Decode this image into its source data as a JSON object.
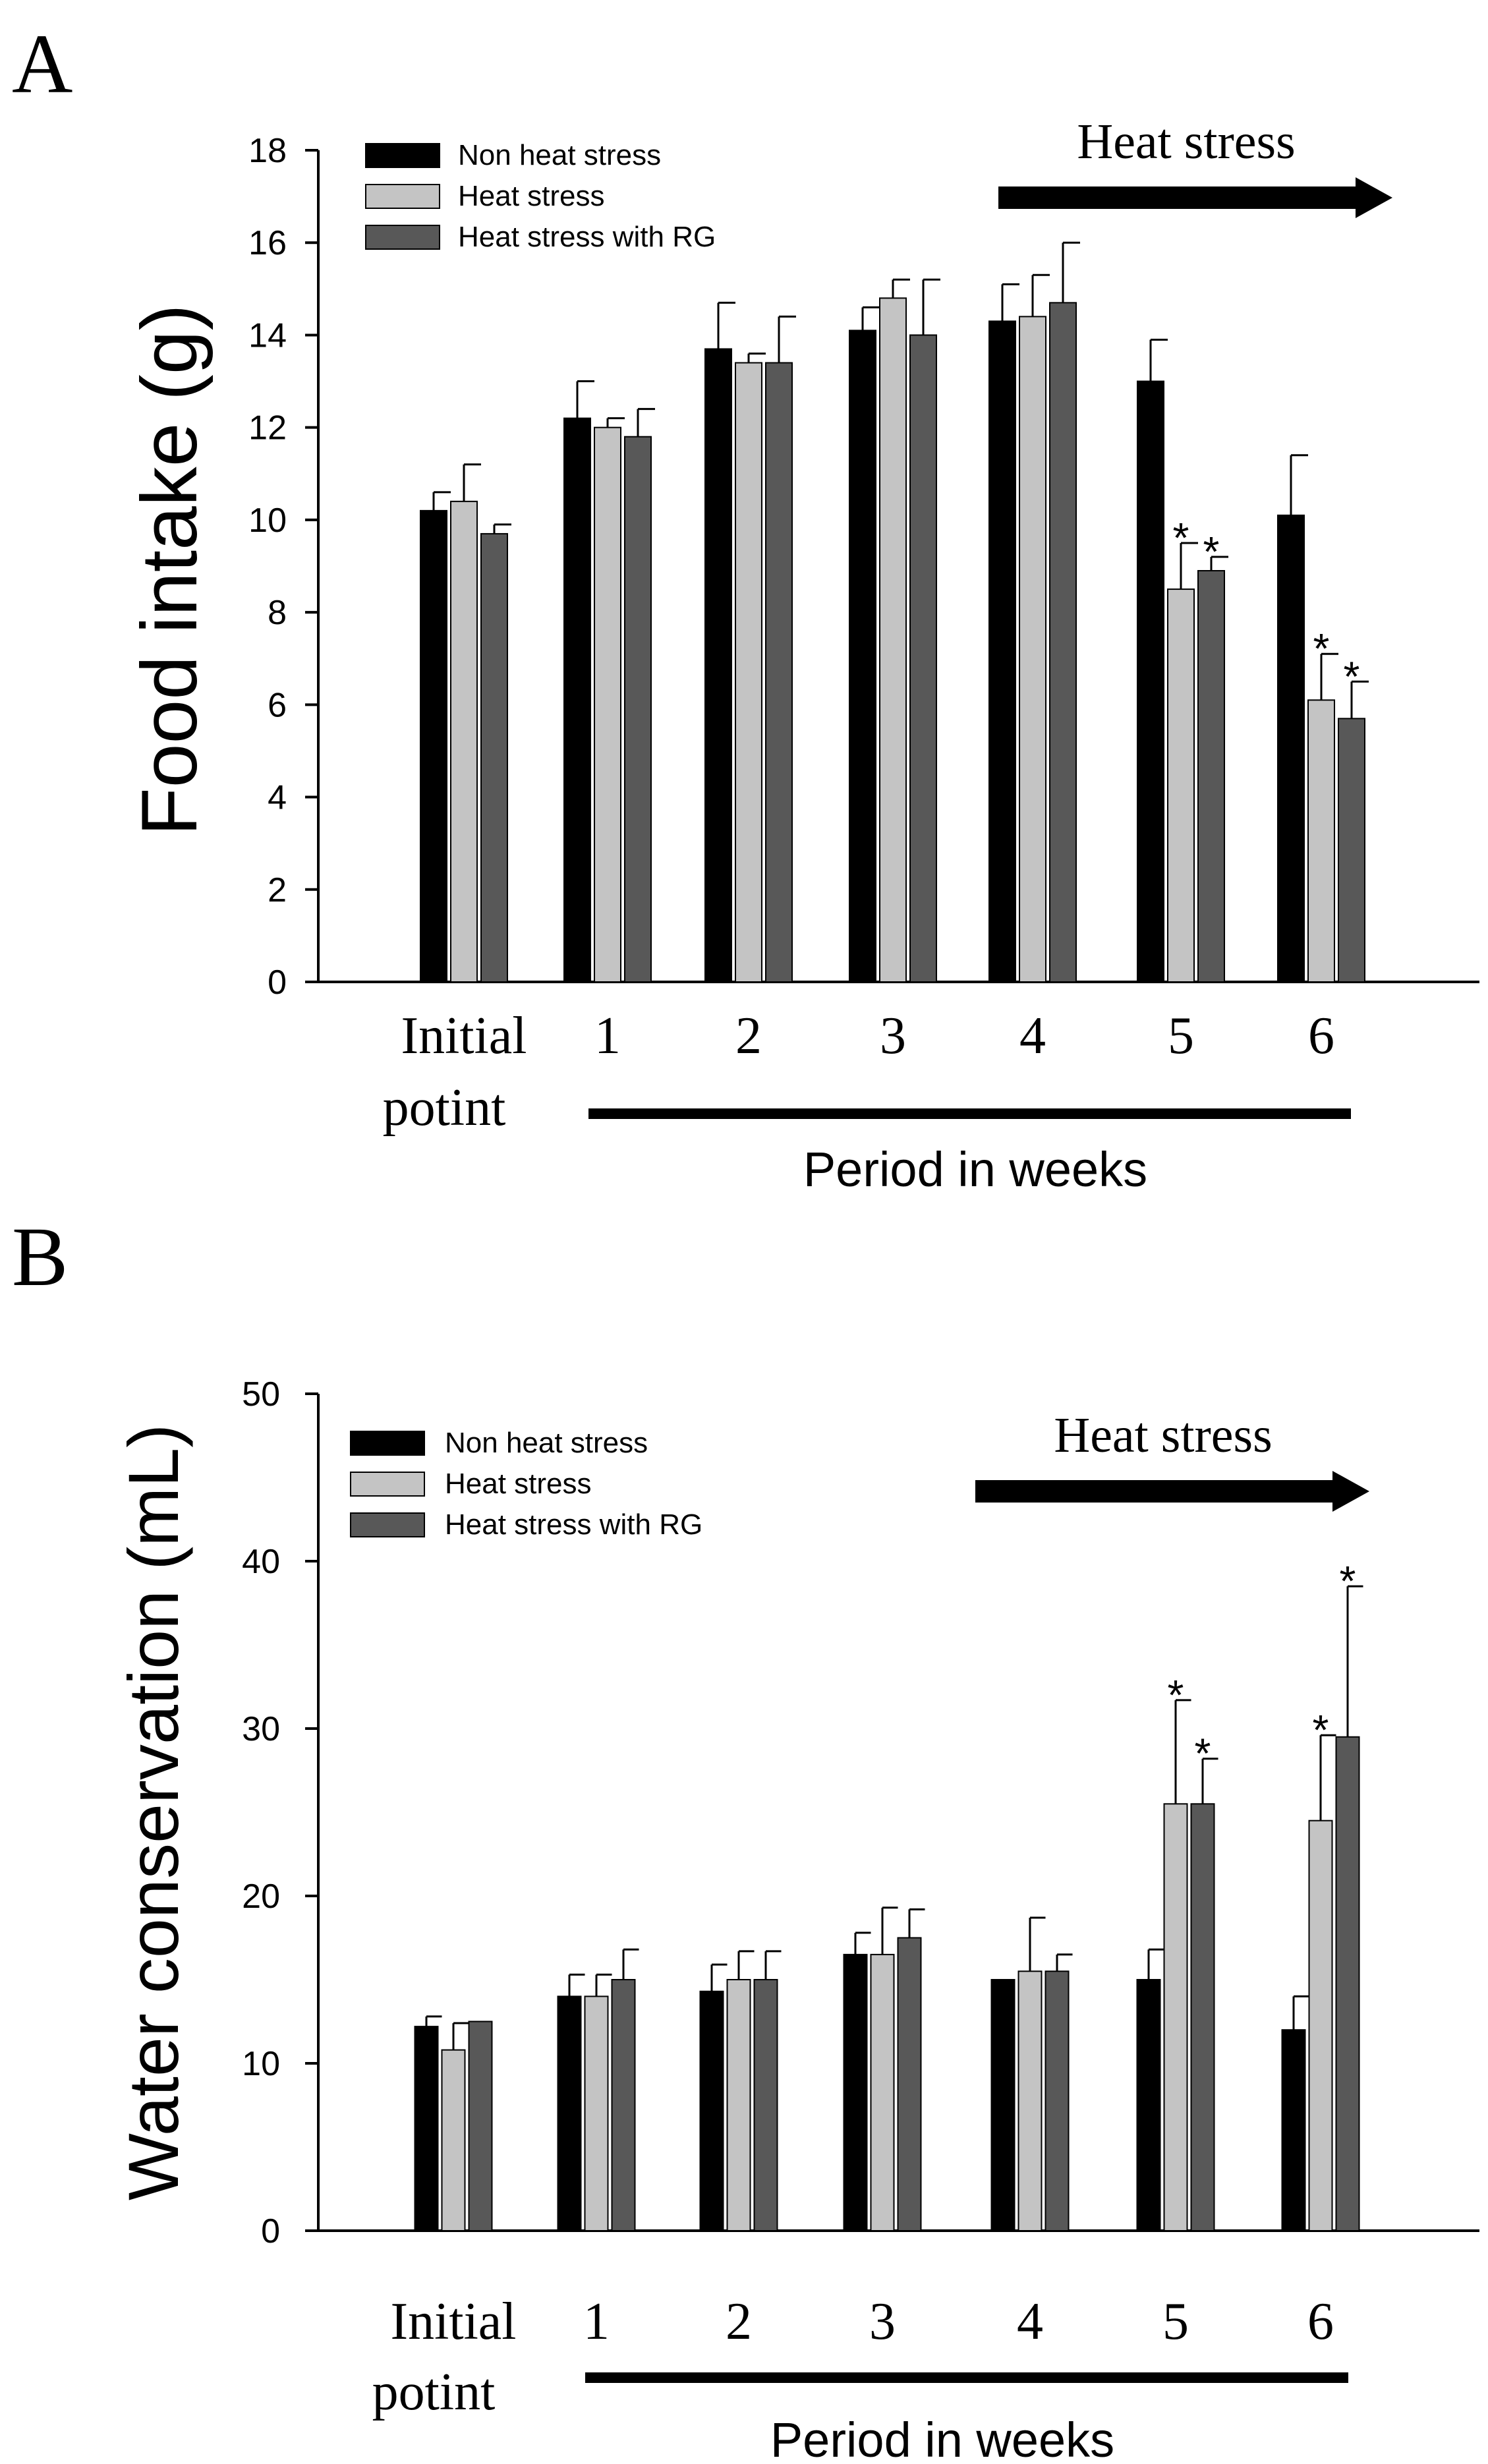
{
  "colors": {
    "non_heat": "#000000",
    "heat": "#c4c4c4",
    "heat_rg": "#585858"
  },
  "chart_data": [
    {
      "type": "bar",
      "panel_label": "A",
      "ylabel": "Food intake (g)",
      "xlabel": "Period in weeks",
      "ylim": [
        0,
        18
      ],
      "ytick_step": 2,
      "categories": [
        "Initial potint",
        "1",
        "2",
        "3",
        "4",
        "5",
        "6"
      ],
      "category_lines": [
        [
          "Initial",
          "potint"
        ],
        [
          "1"
        ],
        [
          "2"
        ],
        [
          "3"
        ],
        [
          "4"
        ],
        [
          "5"
        ],
        [
          "6"
        ]
      ],
      "legend": [
        "Non heat stress",
        "Heat stress",
        "Heat stress with RG"
      ],
      "annotation": "Heat stress",
      "series": [
        {
          "name": "Non heat stress",
          "values": [
            10.2,
            12.2,
            13.7,
            14.1,
            14.3,
            13.0,
            10.1
          ],
          "errors": [
            0.4,
            0.8,
            1.0,
            0.5,
            0.8,
            0.9,
            1.3
          ],
          "stars": [
            false,
            false,
            false,
            false,
            false,
            false,
            false
          ]
        },
        {
          "name": "Heat stress",
          "values": [
            10.4,
            12.0,
            13.4,
            14.8,
            14.4,
            8.5,
            6.1
          ],
          "errors": [
            0.8,
            0.2,
            0.2,
            0.4,
            0.9,
            1.0,
            1.0
          ],
          "stars": [
            false,
            false,
            false,
            false,
            false,
            true,
            true
          ]
        },
        {
          "name": "Heat stress with RG",
          "values": [
            9.7,
            11.8,
            13.4,
            14.0,
            14.7,
            8.9,
            5.7
          ],
          "errors": [
            0.2,
            0.6,
            1.0,
            1.2,
            1.3,
            0.3,
            0.8
          ],
          "stars": [
            false,
            false,
            false,
            false,
            false,
            true,
            true
          ]
        }
      ],
      "star_symbol": "*"
    },
    {
      "type": "bar",
      "panel_label": "B",
      "ylabel": "Water conservation (mL)",
      "xlabel": "Period in weeks",
      "ylim": [
        0,
        50
      ],
      "ytick_step": 10,
      "categories": [
        "Initial potint",
        "1",
        "2",
        "3",
        "4",
        "5",
        "6"
      ],
      "category_lines": [
        [
          "Initial",
          "potint"
        ],
        [
          "1"
        ],
        [
          "2"
        ],
        [
          "3"
        ],
        [
          "4"
        ],
        [
          "5"
        ],
        [
          "6"
        ]
      ],
      "legend": [
        "Non heat stress",
        "Heat stress",
        "Heat stress with RG"
      ],
      "annotation": "Heat stress",
      "series": [
        {
          "name": "Non heat stress",
          "values": [
            12.2,
            14.0,
            14.3,
            16.5,
            15.0,
            15.0,
            12.0
          ],
          "errors": [
            0.6,
            1.3,
            1.6,
            1.3,
            0,
            1.8,
            2.0
          ],
          "stars": [
            false,
            false,
            false,
            false,
            false,
            false,
            false
          ]
        },
        {
          "name": "Heat stress",
          "values": [
            10.8,
            14.0,
            15.0,
            16.5,
            15.5,
            25.5,
            24.5
          ],
          "errors": [
            1.6,
            1.3,
            1.7,
            2.8,
            3.2,
            6.2,
            5.1
          ],
          "stars": [
            false,
            false,
            false,
            false,
            false,
            true,
            true
          ]
        },
        {
          "name": "Heat stress with RG",
          "values": [
            12.5,
            15.0,
            15.0,
            17.5,
            15.5,
            25.5,
            29.5
          ],
          "errors": [
            0,
            1.8,
            1.7,
            1.7,
            1.0,
            2.7,
            9.0
          ],
          "stars": [
            false,
            false,
            false,
            false,
            false,
            true,
            true
          ]
        }
      ],
      "star_symbol": "*"
    }
  ]
}
